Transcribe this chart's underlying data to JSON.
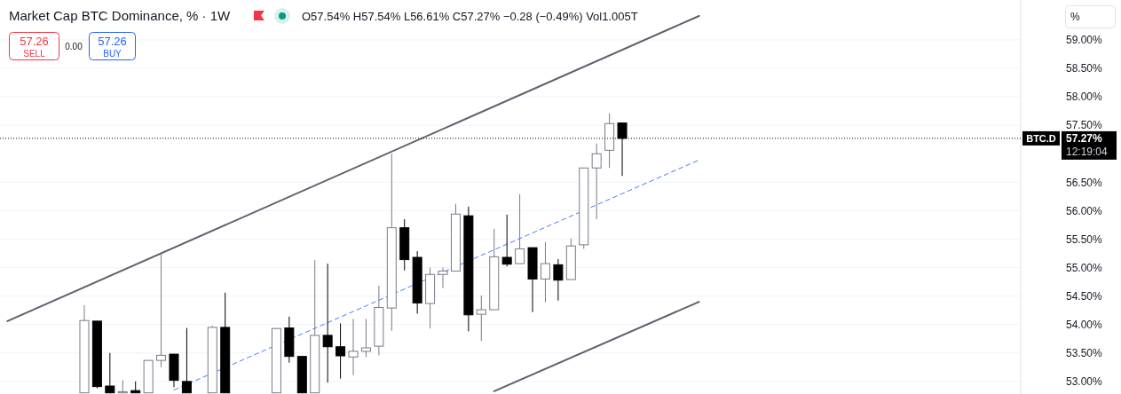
{
  "chart_data": {
    "type": "candlestick",
    "title": "Market Cap BTC Dominance, % · 1W",
    "subtitle": "O57.54% H57.54% L56.61% C57.27% −0.28 (−0.49%) Vol1.005T",
    "annotations": [
      "57.26",
      "SELL",
      "0.00",
      "57.26",
      "BUY",
      "%",
      "57.27%",
      "12:19:04"
    ],
    "categories": [
      null,
      null,
      null,
      null,
      null,
      null,
      null,
      null,
      null,
      null,
      null,
      null,
      null,
      null,
      null,
      null,
      null,
      null,
      null,
      null,
      null,
      null,
      null,
      null,
      null,
      null,
      null,
      null,
      null,
      null,
      null,
      null,
      null,
      null,
      null,
      null,
      null,
      null,
      null,
      null,
      null,
      null,
      null,
      null,
      null,
      null,
      null,
      null,
      null,
      null,
      null,
      null,
      null,
      null,
      null,
      null,
      null,
      null,
      null,
      null,
      null,
      null,
      null,
      null,
      null,
      null,
      null,
      null,
      null,
      null,
      null,
      null,
      null,
      null,
      null,
      null,
      null,
      null,
      null,
      null
    ],
    "ohlc": [
      null,
      null,
      null,
      null,
      null,
      null,
      [
        52.8,
        54.34,
        52.8,
        54.07
      ],
      [
        54.06,
        54.06,
        52.88,
        52.91
      ],
      [
        52.92,
        53.5,
        52.8,
        52.8
      ],
      [
        52.8,
        53.02,
        52.8,
        52.82
      ],
      [
        52.84,
        53.0,
        52.8,
        52.8
      ],
      [
        52.8,
        53.37,
        52.8,
        53.37
      ],
      [
        53.37,
        55.24,
        53.25,
        53.46
      ],
      [
        53.48,
        53.48,
        52.9,
        53.02
      ],
      [
        53.0,
        53.94,
        52.8,
        52.8
      ],
      null,
      [
        52.8,
        53.98,
        52.8,
        53.95
      ],
      [
        53.95,
        54.56,
        52.8,
        52.8
      ],
      null,
      null,
      null,
      [
        52.8,
        53.93,
        52.8,
        53.93
      ],
      [
        53.94,
        54.14,
        53.33,
        53.44
      ],
      [
        53.44,
        53.45,
        52.8,
        52.8
      ],
      [
        52.8,
        55.13,
        52.8,
        53.81
      ],
      [
        53.81,
        55.07,
        52.98,
        53.61
      ],
      [
        53.61,
        54.02,
        53.05,
        53.45
      ],
      [
        53.43,
        54.1,
        53.11,
        53.53
      ],
      [
        53.53,
        54.1,
        53.43,
        53.59
      ],
      [
        53.62,
        54.68,
        53.46,
        54.3
      ],
      [
        54.29,
        57.0,
        53.89,
        55.7
      ],
      [
        55.7,
        55.85,
        54.95,
        55.14
      ],
      [
        55.18,
        55.29,
        54.19,
        54.38
      ],
      [
        54.37,
        55.0,
        53.93,
        54.88
      ],
      [
        54.88,
        55.0,
        54.64,
        54.94
      ],
      [
        54.94,
        56.12,
        54.94,
        55.94
      ],
      [
        55.91,
        56.07,
        53.88,
        54.17
      ],
      [
        54.18,
        54.51,
        53.71,
        54.26
      ],
      [
        54.26,
        55.68,
        54.26,
        55.19
      ],
      [
        55.18,
        55.93,
        55.02,
        55.06
      ],
      [
        55.07,
        56.29,
        55.07,
        55.33
      ],
      [
        55.35,
        55.35,
        54.22,
        54.8
      ],
      [
        54.8,
        55.45,
        54.39,
        55.07
      ],
      [
        55.05,
        55.15,
        54.42,
        54.78
      ],
      [
        54.79,
        55.51,
        54.79,
        55.38
      ],
      [
        55.4,
        56.75,
        55.33,
        56.75
      ],
      [
        56.75,
        57.18,
        55.85,
        57.0
      ],
      [
        57.06,
        57.71,
        56.75,
        57.53
      ],
      [
        57.54,
        57.54,
        56.61,
        57.27
      ],
      null,
      null,
      null,
      null,
      null,
      null,
      null,
      null,
      null,
      null,
      null,
      null,
      null,
      null,
      null,
      null,
      null,
      null,
      null,
      null,
      null,
      null,
      null,
      null,
      null,
      null,
      null,
      null,
      null,
      null,
      null
    ],
    "series": [
      {
        "type": "line",
        "color": "#5d606b",
        "line_style": "solid",
        "values": [
          54.06,
          null,
          null,
          null,
          null,
          null,
          null,
          null,
          null,
          null,
          null,
          null,
          null,
          null,
          null,
          null,
          null,
          null,
          null,
          null,
          null,
          null,
          null,
          null,
          null,
          null,
          null,
          null,
          null,
          null,
          null,
          null,
          null,
          null,
          null,
          null,
          null,
          null,
          null,
          null,
          null,
          null,
          null,
          null,
          null,
          null,
          null,
          null,
          null,
          null,
          null,
          null,
          null,
          null,
          59.42,
          null,
          null,
          null,
          null,
          null,
          null,
          null,
          null,
          null,
          null,
          null,
          null,
          null,
          null,
          null,
          null,
          null,
          null,
          null,
          null,
          null,
          null,
          null,
          null,
          null
        ]
      },
      {
        "type": "line",
        "color": "#5d606b",
        "line_style": "solid",
        "values": [
          null,
          null,
          null,
          null,
          null,
          null,
          null,
          null,
          null,
          null,
          null,
          null,
          null,
          null,
          null,
          null,
          null,
          null,
          null,
          null,
          null,
          null,
          null,
          null,
          null,
          null,
          null,
          null,
          null,
          null,
          null,
          null,
          null,
          null,
          null,
          null,
          null,
          null,
          52.83,
          null,
          null,
          null,
          null,
          null,
          null,
          null,
          null,
          null,
          null,
          null,
          null,
          null,
          null,
          null,
          54.4,
          null,
          null,
          null,
          null,
          null,
          null,
          null,
          null,
          null,
          null,
          null,
          null,
          null,
          null,
          null,
          null,
          null,
          null,
          null,
          null,
          null,
          null,
          null,
          null,
          null
        ]
      },
      {
        "type": "line",
        "color": "#4a7cf5",
        "line_style": "dashed",
        "values": [
          null,
          null,
          null,
          null,
          null,
          null,
          null,
          null,
          null,
          null,
          null,
          null,
          null,
          52.85,
          null,
          null,
          null,
          null,
          null,
          null,
          null,
          null,
          null,
          null,
          null,
          null,
          null,
          null,
          null,
          null,
          null,
          null,
          null,
          null,
          null,
          null,
          null,
          null,
          null,
          null,
          null,
          null,
          null,
          null,
          null,
          null,
          null,
          null,
          null,
          null,
          null,
          null,
          null,
          null,
          56.89,
          null,
          null,
          null,
          null,
          null,
          null,
          null,
          null,
          null,
          null,
          null,
          null,
          null,
          null,
          null,
          null,
          null,
          null,
          null,
          null,
          null,
          null,
          null,
          null,
          null
        ]
      }
    ],
    "ref_lines": [
      {
        "axis": "y",
        "value": 57.27,
        "label": "BTC.D",
        "color": "#000000",
        "line_style": "dotted"
      }
    ],
    "ylim": [
      52.78,
      59.7
    ],
    "yticks": [
      {
        "value": 53,
        "label": "53.00%"
      },
      {
        "value": 53.5,
        "label": "53.50%"
      },
      {
        "value": 54,
        "label": "54.00%"
      },
      {
        "value": 54.5,
        "label": "54.50%"
      },
      {
        "value": 55,
        "label": "55.00%"
      },
      {
        "value": 55.5,
        "label": "55.50%"
      },
      {
        "value": 56,
        "label": "56.00%"
      },
      {
        "value": 56.5,
        "label": "56.50%"
      },
      {
        "value": 57.5,
        "label": "57.50%"
      },
      {
        "value": 58,
        "label": "58.00%"
      },
      {
        "value": 58.5,
        "label": "58.50%"
      },
      {
        "value": 59,
        "label": "59.00%"
      }
    ],
    "grid": "y"
  }
}
